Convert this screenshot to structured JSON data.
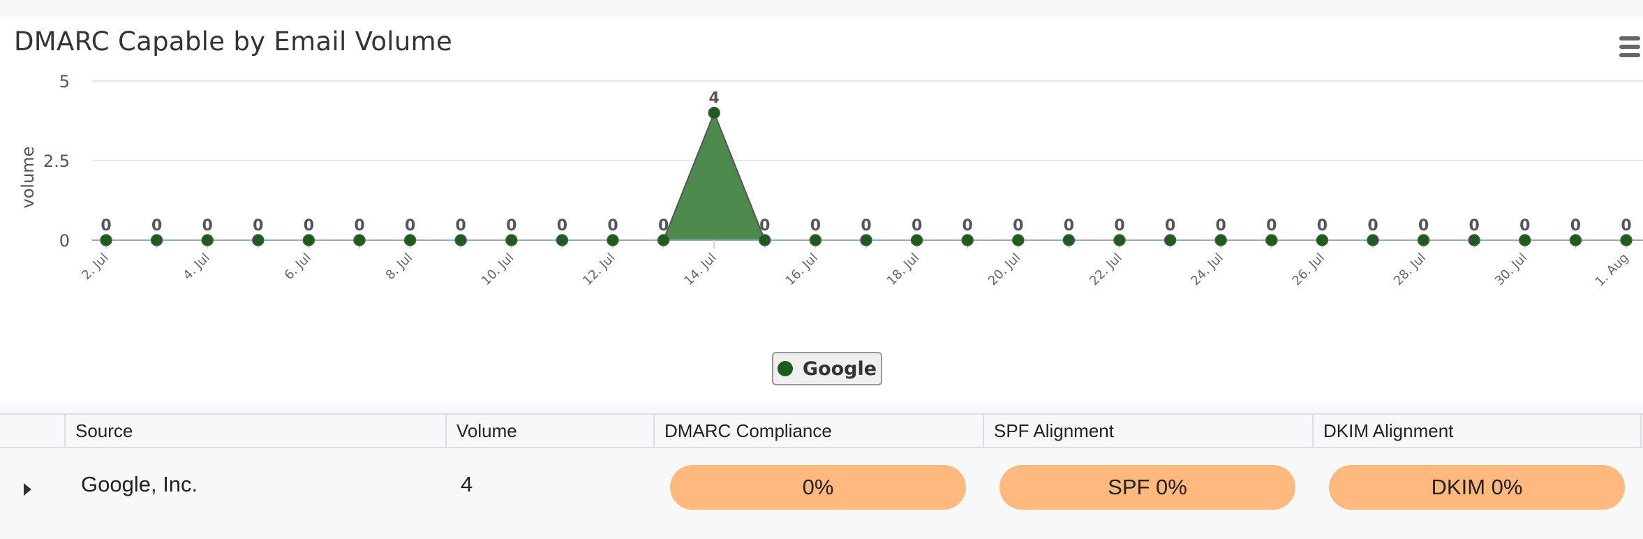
{
  "chart": {
    "title": "DMARC Capable by Email Volume",
    "ylabel": "volume",
    "legend_label": "Google",
    "series_color": "#1a5e1a",
    "fill_color": "#4e8a4e"
  },
  "chart_data": {
    "type": "area",
    "title": "DMARC Capable by Email Volume",
    "ylabel": "volume",
    "xlabel": "",
    "ylim": [
      0,
      5
    ],
    "y_ticks": [
      "0",
      "2.5",
      "5"
    ],
    "x_tick_labels": [
      "2. Jul",
      "4. Jul",
      "6. Jul",
      "8. Jul",
      "10. Jul",
      "12. Jul",
      "14. Jul",
      "16. Jul",
      "18. Jul",
      "20. Jul",
      "22. Jul",
      "24. Jul",
      "26. Jul",
      "28. Jul",
      "30. Jul",
      "1. Aug"
    ],
    "x": [
      "2. Jul",
      "3. Jul",
      "4. Jul",
      "5. Jul",
      "6. Jul",
      "7. Jul",
      "8. Jul",
      "9. Jul",
      "10. Jul",
      "11. Jul",
      "12. Jul",
      "13. Jul",
      "14. Jul",
      "15. Jul",
      "16. Jul",
      "17. Jul",
      "18. Jul",
      "19. Jul",
      "20. Jul",
      "21. Jul",
      "22. Jul",
      "23. Jul",
      "24. Jul",
      "25. Jul",
      "26. Jul",
      "27. Jul",
      "28. Jul",
      "29. Jul",
      "30. Jul",
      "31. Jul",
      "1. Aug"
    ],
    "series": [
      {
        "name": "Google",
        "values": [
          0,
          0,
          0,
          0,
          0,
          0,
          0,
          0,
          0,
          0,
          0,
          0,
          4,
          0,
          0,
          0,
          0,
          0,
          0,
          0,
          0,
          0,
          0,
          0,
          0,
          0,
          0,
          0,
          0,
          0,
          0
        ]
      }
    ],
    "grid": true,
    "legend": "bottom-center"
  },
  "table": {
    "headers": [
      "Source",
      "Volume",
      "DMARC Compliance",
      "SPF Alignment",
      "DKIM Alignment"
    ],
    "rows": [
      {
        "source": "Google, Inc.",
        "volume": "4",
        "dmarc": "0%",
        "spf": "SPF 0%",
        "dkim": "DKIM 0%"
      }
    ],
    "pill_color": "#ffb97f"
  },
  "icons": {
    "menu": "hamburger-menu-icon",
    "expand": "caret-right-icon"
  }
}
